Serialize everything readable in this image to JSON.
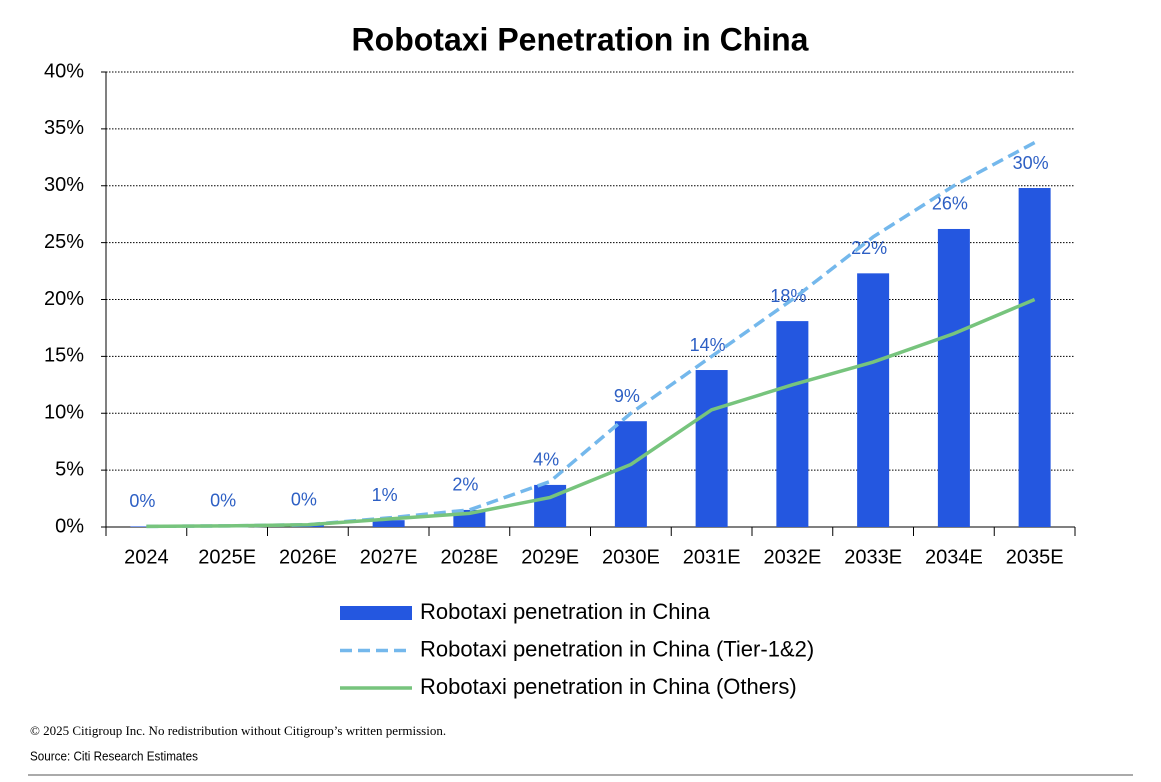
{
  "chart_data": {
    "type": "bar",
    "title": "Robotaxi Penetration in China",
    "categories": [
      "2024",
      "2025E",
      "2026E",
      "2027E",
      "2028E",
      "2029E",
      "2030E",
      "2031E",
      "2032E",
      "2033E",
      "2034E",
      "2035E"
    ],
    "series": [
      {
        "name": "Robotaxi penetration in China",
        "type": "bar",
        "color": "#2457e0",
        "values": [
          0.05,
          0.1,
          0.2,
          0.6,
          1.5,
          3.7,
          9.3,
          13.8,
          18.1,
          22.3,
          26.2,
          29.8
        ],
        "value_labels": [
          "0%",
          "0%",
          "0%",
          "1%",
          "2%",
          "4%",
          "9%",
          "14%",
          "18%",
          "22%",
          "26%",
          "30%"
        ]
      },
      {
        "name": "Robotaxi penetration in China (Tier-1&2)",
        "type": "line",
        "dashed": true,
        "color": "#74b8ec",
        "values": [
          0.05,
          0.1,
          0.2,
          0.8,
          1.5,
          4,
          10,
          15,
          20,
          25.5,
          30,
          33.8
        ]
      },
      {
        "name": "Robotaxi penetration in China (Others)",
        "type": "line",
        "color": "#77c47d",
        "values": [
          0.05,
          0.1,
          0.2,
          0.7,
          1.2,
          2.6,
          5.5,
          10.3,
          12.5,
          14.5,
          17,
          20
        ]
      }
    ],
    "ylim": [
      0,
      40
    ],
    "yticks": [
      {
        "value": 0,
        "label": "0%"
      },
      {
        "value": 5,
        "label": "5%"
      },
      {
        "value": 10,
        "label": "10%"
      },
      {
        "value": 15,
        "label": "15%"
      },
      {
        "value": 20,
        "label": "20%"
      },
      {
        "value": 25,
        "label": "25%"
      },
      {
        "value": 30,
        "label": "30%"
      },
      {
        "value": 35,
        "label": "35%"
      },
      {
        "value": 40,
        "label": "40%"
      }
    ],
    "grid": true,
    "legend": "bottom",
    "footnote": "© 2025 Citigroup Inc. No redistribution without Citigroup’s written permission.",
    "source": "Source: Citi Research Estimates"
  }
}
